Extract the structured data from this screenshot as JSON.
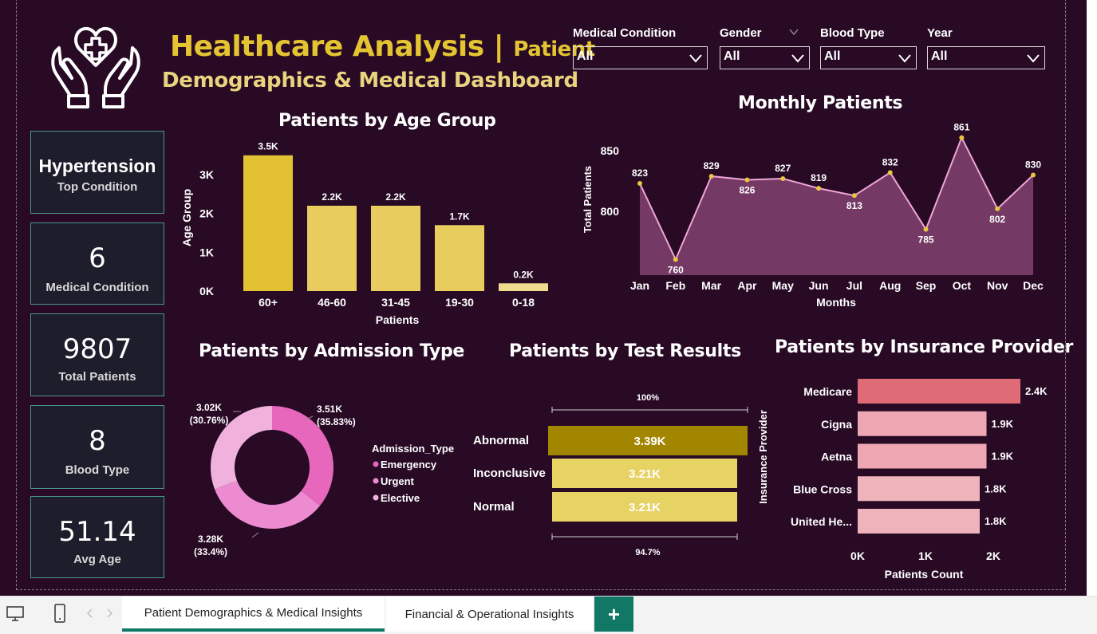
{
  "header": {
    "title_main": "Healthcare Analysis |",
    "title_tail": "Patient",
    "title_line2": "Demographics & Medical Dashboard"
  },
  "filters": [
    {
      "label": "Medical Condition",
      "value": "All"
    },
    {
      "label": "Gender",
      "value": "All"
    },
    {
      "label": "Blood Type",
      "value": "All"
    },
    {
      "label": "Year",
      "value": "All"
    }
  ],
  "kpis": [
    {
      "value": "Hypertension",
      "label": "Top Condition"
    },
    {
      "value": "6",
      "label": "Medical Condition"
    },
    {
      "value": "9807",
      "label": "Total Patients"
    },
    {
      "value": "8",
      "label": "Blood Type"
    },
    {
      "value": "51.14",
      "label": "Avg Age"
    }
  ],
  "chart_data": [
    {
      "id": "age",
      "type": "bar",
      "title": "Patients by Age Group",
      "xlabel": "Patients",
      "ylabel": "Age Group",
      "categories": [
        "60+",
        "46-60",
        "31-45",
        "19-30",
        "0-18"
      ],
      "values": [
        3500,
        2200,
        2200,
        1700,
        200
      ],
      "data_labels": [
        "3.5K",
        "2.2K",
        "2.2K",
        "1.7K",
        "0.2K"
      ],
      "y_ticks": [
        "0K",
        "1K",
        "2K",
        "3K"
      ],
      "ylim": [
        0,
        3700
      ],
      "colors": [
        "#e2c133",
        "#e8cd5e",
        "#e8cd5e",
        "#e8cd5e",
        "#eedb8f"
      ]
    },
    {
      "id": "monthly",
      "type": "area",
      "title": "Monthly Patients",
      "xlabel": "Months",
      "ylabel": "Total Patients",
      "categories": [
        "Jan",
        "Feb",
        "Mar",
        "Apr",
        "May",
        "Jun",
        "Jul",
        "Aug",
        "Sep",
        "Oct",
        "Nov",
        "Dec"
      ],
      "values": [
        823,
        760,
        829,
        826,
        827,
        819,
        813,
        832,
        785,
        861,
        802,
        830
      ],
      "y_ticks": [
        "800",
        "850"
      ],
      "ylim": [
        747,
        866
      ],
      "line_color": "#f0a6d6",
      "fill_color": "#743a65",
      "marker_color": "#e8c640"
    },
    {
      "id": "admission",
      "type": "pie",
      "title": "Patients by Admission Type",
      "legend_title": "Admission_Type",
      "categories": [
        "Emergency",
        "Urgent",
        "Elective"
      ],
      "values": [
        3510,
        3280,
        3020
      ],
      "data_labels": [
        "3.51K (35.83%)",
        "3.28K (33.4%)",
        "3.02K (30.76%)"
      ],
      "colors": [
        "#e667bb",
        "#ec8bcf",
        "#f0b1dc"
      ]
    },
    {
      "id": "tests",
      "type": "bar",
      "title": "Patients by Test Results",
      "categories": [
        "Abnormal",
        "Inconclusive",
        "Normal"
      ],
      "values": [
        3390,
        3210,
        3210
      ],
      "data_labels": [
        "3.39K",
        "3.21K",
        "3.21K"
      ],
      "top_pct": "100%",
      "bottom_pct": "94.7%",
      "colors": [
        "#a38600",
        "#e7d264",
        "#e7d264"
      ]
    },
    {
      "id": "insurance",
      "type": "bar",
      "title": "Patients by Insurance Provider",
      "xlabel": "Patients Count",
      "ylabel": "Insurance Provider",
      "categories": [
        "Medicare",
        "Cigna",
        "Aetna",
        "Blue Cross",
        "United He..."
      ],
      "values": [
        2400,
        1900,
        1900,
        1800,
        1800
      ],
      "data_labels": [
        "2.4K",
        "1.9K",
        "1.9K",
        "1.8K",
        "1.8K"
      ],
      "x_ticks": [
        "0K",
        "1K",
        "2K"
      ],
      "colors": [
        "#de6b76",
        "#eda7b2",
        "#eda7b2",
        "#efb3bc",
        "#efb3bc"
      ]
    }
  ],
  "tabs": [
    {
      "label": "Patient Demographics & Medical Insights",
      "active": true
    },
    {
      "label": "Financial & Operational Insights",
      "active": false
    }
  ],
  "add_tab_label": "+",
  "icons": [
    "desktop-icon",
    "phone-icon",
    "chevron-left-icon",
    "chevron-right-icon",
    "healthcare-logo-icon"
  ]
}
